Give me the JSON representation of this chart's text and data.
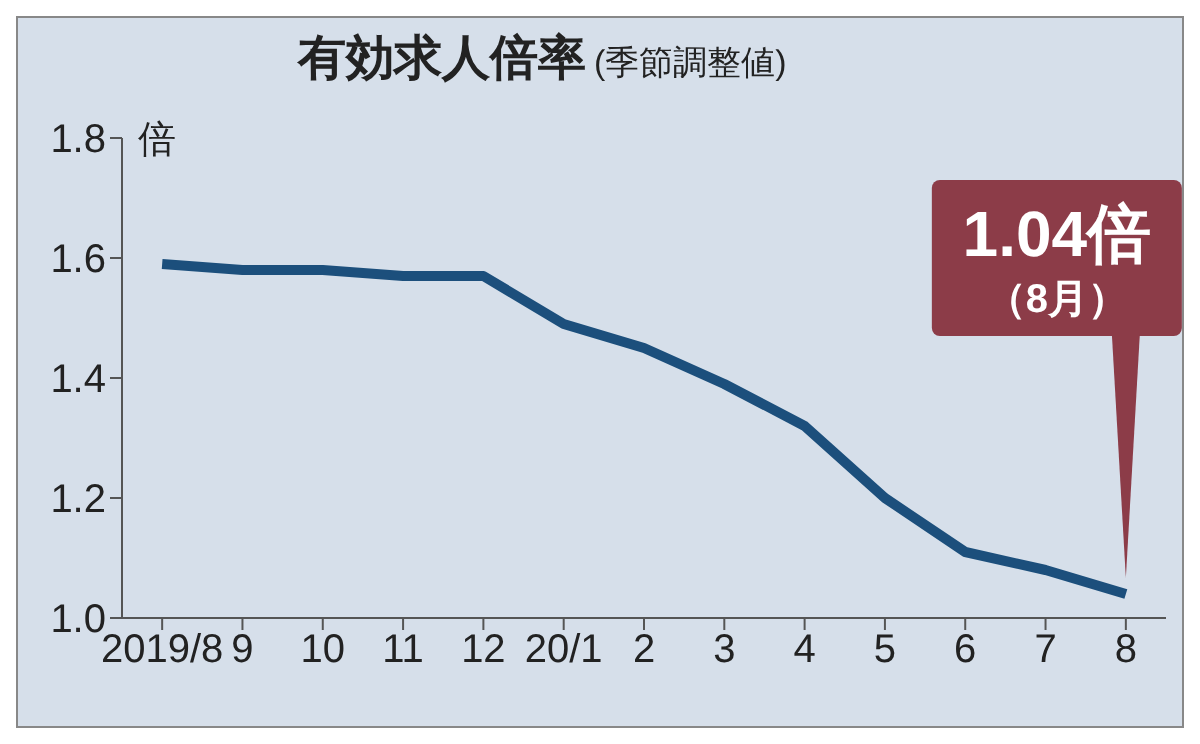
{
  "chart_data": {
    "type": "line",
    "title": "有効求人倍率",
    "subtitle": "(季節調整値)",
    "ylabel": "倍",
    "categories": [
      "2019/8",
      "9",
      "10",
      "11",
      "12",
      "20/1",
      "2",
      "3",
      "4",
      "5",
      "6",
      "7",
      "8"
    ],
    "series": [
      {
        "color": "#1c4f7c",
        "values": [
          1.59,
          1.58,
          1.58,
          1.57,
          1.57,
          1.49,
          1.45,
          1.39,
          1.32,
          1.2,
          1.11,
          1.08,
          1.04
        ]
      }
    ],
    "ylim": [
      1.0,
      1.8
    ],
    "yticks": [
      {
        "value": 1.0,
        "label": "1.0"
      },
      {
        "value": 1.2,
        "label": "1.2"
      },
      {
        "value": 1.4,
        "label": "1.4"
      },
      {
        "value": 1.6,
        "label": "1.6"
      },
      {
        "value": 1.8,
        "label": "1.8"
      }
    ],
    "marker": "none",
    "line_style": "solid",
    "annotations": [
      {
        "text": "1.04倍（8月）",
        "x": "8",
        "y": 1.04
      }
    ]
  }
}
